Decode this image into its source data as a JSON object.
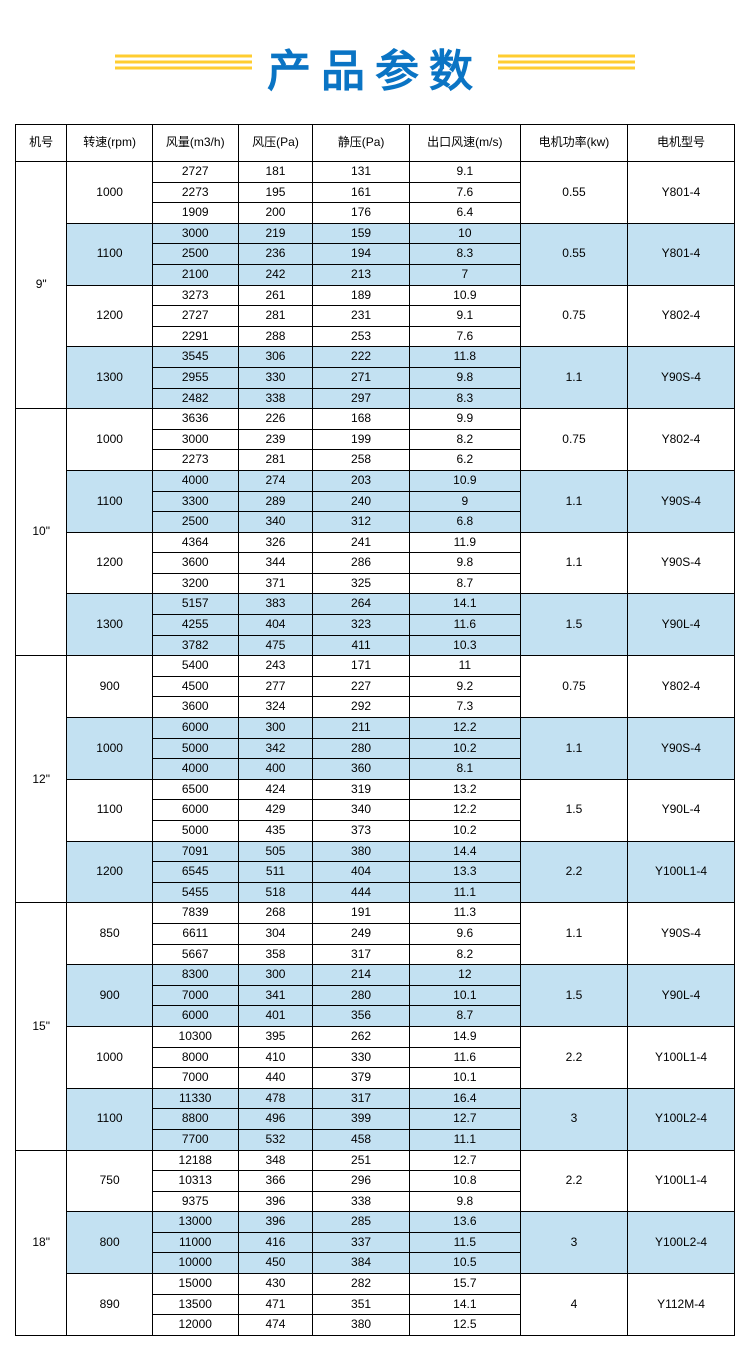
{
  "title": "产品参数",
  "columns": [
    "机号",
    "转速(rpm)",
    "风量(m3/h)",
    "风压(Pa)",
    "静压(Pa)",
    "出口风速(m/s)",
    "电机功率(kw)",
    "电机型号"
  ],
  "col_widths": [
    "48",
    "80",
    "80",
    "70",
    "90",
    "104",
    "100",
    "100"
  ],
  "alt_color": "#c3e1f2",
  "sizes": [
    {
      "size": "9\"",
      "speeds": [
        {
          "rpm": "1000",
          "rows": [
            [
              "2727",
              "181",
              "131",
              "9.1"
            ],
            [
              "2273",
              "195",
              "161",
              "7.6"
            ],
            [
              "1909",
              "200",
              "176",
              "6.4"
            ]
          ],
          "power": "0.55",
          "model": "Y801-4",
          "alt": false
        },
        {
          "rpm": "1100",
          "rows": [
            [
              "3000",
              "219",
              "159",
              "10"
            ],
            [
              "2500",
              "236",
              "194",
              "8.3"
            ],
            [
              "2100",
              "242",
              "213",
              "7"
            ]
          ],
          "power": "0.55",
          "model": "Y801-4",
          "alt": true
        },
        {
          "rpm": "1200",
          "rows": [
            [
              "3273",
              "261",
              "189",
              "10.9"
            ],
            [
              "2727",
              "281",
              "231",
              "9.1"
            ],
            [
              "2291",
              "288",
              "253",
              "7.6"
            ]
          ],
          "power": "0.75",
          "model": "Y802-4",
          "alt": false
        },
        {
          "rpm": "1300",
          "rows": [
            [
              "3545",
              "306",
              "222",
              "11.8"
            ],
            [
              "2955",
              "330",
              "271",
              "9.8"
            ],
            [
              "2482",
              "338",
              "297",
              "8.3"
            ]
          ],
          "power": "1.1",
          "model": "Y90S-4",
          "alt": true
        }
      ]
    },
    {
      "size": "10\"",
      "speeds": [
        {
          "rpm": "1000",
          "rows": [
            [
              "3636",
              "226",
              "168",
              "9.9"
            ],
            [
              "3000",
              "239",
              "199",
              "8.2"
            ],
            [
              "2273",
              "281",
              "258",
              "6.2"
            ]
          ],
          "power": "0.75",
          "model": "Y802-4",
          "alt": false
        },
        {
          "rpm": "1100",
          "rows": [
            [
              "4000",
              "274",
              "203",
              "10.9"
            ],
            [
              "3300",
              "289",
              "240",
              "9"
            ],
            [
              "2500",
              "340",
              "312",
              "6.8"
            ]
          ],
          "power": "1.1",
          "model": "Y90S-4",
          "alt": true
        },
        {
          "rpm": "1200",
          "rows": [
            [
              "4364",
              "326",
              "241",
              "11.9"
            ],
            [
              "3600",
              "344",
              "286",
              "9.8"
            ],
            [
              "3200",
              "371",
              "325",
              "8.7"
            ]
          ],
          "power": "1.1",
          "model": "Y90S-4",
          "alt": false
        },
        {
          "rpm": "1300",
          "rows": [
            [
              "5157",
              "383",
              "264",
              "14.1"
            ],
            [
              "4255",
              "404",
              "323",
              "11.6"
            ],
            [
              "3782",
              "475",
              "411",
              "10.3"
            ]
          ],
          "power": "1.5",
          "model": "Y90L-4",
          "alt": true
        }
      ]
    },
    {
      "size": "12\"",
      "speeds": [
        {
          "rpm": "900",
          "rows": [
            [
              "5400",
              "243",
              "171",
              "11"
            ],
            [
              "4500",
              "277",
              "227",
              "9.2"
            ],
            [
              "3600",
              "324",
              "292",
              "7.3"
            ]
          ],
          "power": "0.75",
          "model": "Y802-4",
          "alt": false
        },
        {
          "rpm": "1000",
          "rows": [
            [
              "6000",
              "300",
              "211",
              "12.2"
            ],
            [
              "5000",
              "342",
              "280",
              "10.2"
            ],
            [
              "4000",
              "400",
              "360",
              "8.1"
            ]
          ],
          "power": "1.1",
          "model": "Y90S-4",
          "alt": true
        },
        {
          "rpm": "1100",
          "rows": [
            [
              "6500",
              "424",
              "319",
              "13.2"
            ],
            [
              "6000",
              "429",
              "340",
              "12.2"
            ],
            [
              "5000",
              "435",
              "373",
              "10.2"
            ]
          ],
          "power": "1.5",
          "model": "Y90L-4",
          "alt": false
        },
        {
          "rpm": "1200",
          "rows": [
            [
              "7091",
              "505",
              "380",
              "14.4"
            ],
            [
              "6545",
              "511",
              "404",
              "13.3"
            ],
            [
              "5455",
              "518",
              "444",
              "11.1"
            ]
          ],
          "power": "2.2",
          "model": "Y100L1-4",
          "alt": true
        }
      ]
    },
    {
      "size": "15\"",
      "speeds": [
        {
          "rpm": "850",
          "rows": [
            [
              "7839",
              "268",
              "191",
              "11.3"
            ],
            [
              "6611",
              "304",
              "249",
              "9.6"
            ],
            [
              "5667",
              "358",
              "317",
              "8.2"
            ]
          ],
          "power": "1.1",
          "model": "Y90S-4",
          "alt": false
        },
        {
          "rpm": "900",
          "rows": [
            [
              "8300",
              "300",
              "214",
              "12"
            ],
            [
              "7000",
              "341",
              "280",
              "10.1"
            ],
            [
              "6000",
              "401",
              "356",
              "8.7"
            ]
          ],
          "power": "1.5",
          "model": "Y90L-4",
          "alt": true
        },
        {
          "rpm": "1000",
          "rows": [
            [
              "10300",
              "395",
              "262",
              "14.9"
            ],
            [
              "8000",
              "410",
              "330",
              "11.6"
            ],
            [
              "7000",
              "440",
              "379",
              "10.1"
            ]
          ],
          "power": "2.2",
          "model": "Y100L1-4",
          "alt": false
        },
        {
          "rpm": "1100",
          "rows": [
            [
              "11330",
              "478",
              "317",
              "16.4"
            ],
            [
              "8800",
              "496",
              "399",
              "12.7"
            ],
            [
              "7700",
              "532",
              "458",
              "11.1"
            ]
          ],
          "power": "3",
          "model": "Y100L2-4",
          "alt": true
        }
      ]
    },
    {
      "size": "18\"",
      "speeds": [
        {
          "rpm": "750",
          "rows": [
            [
              "12188",
              "348",
              "251",
              "12.7"
            ],
            [
              "10313",
              "366",
              "296",
              "10.8"
            ],
            [
              "9375",
              "396",
              "338",
              "9.8"
            ]
          ],
          "power": "2.2",
          "model": "Y100L1-4",
          "alt": false
        },
        {
          "rpm": "800",
          "rows": [
            [
              "13000",
              "396",
              "285",
              "13.6"
            ],
            [
              "11000",
              "416",
              "337",
              "11.5"
            ],
            [
              "10000",
              "450",
              "384",
              "10.5"
            ]
          ],
          "power": "3",
          "model": "Y100L2-4",
          "alt": true
        },
        {
          "rpm": "890",
          "rows": [
            [
              "15000",
              "430",
              "282",
              "15.7"
            ],
            [
              "13500",
              "471",
              "351",
              "14.1"
            ],
            [
              "12000",
              "474",
              "380",
              "12.5"
            ]
          ],
          "power": "4",
          "model": "Y112M-4",
          "alt": false
        }
      ]
    }
  ]
}
